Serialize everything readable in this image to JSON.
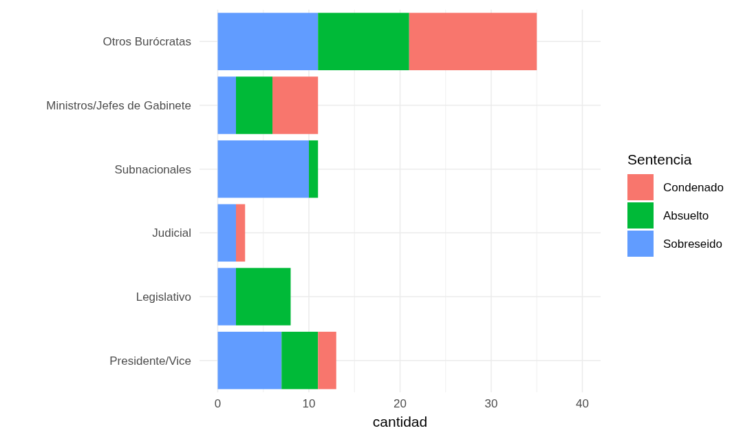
{
  "chart_data": {
    "type": "bar",
    "orientation": "horizontal",
    "stacked": true,
    "xlabel": "cantidad",
    "legend_title": "Sentencia",
    "legend": "right",
    "grid": true,
    "categories": [
      "Otros Burócratas",
      "Ministros/Jefes de Gabinete",
      "Subnacionales",
      "Judicial",
      "Legislativo",
      "Presidente/Vice"
    ],
    "xlim": [
      -2,
      42
    ],
    "xticks": [
      0,
      {
        "value": 5,
        "label": null
      },
      10,
      {
        "value": 15,
        "label": null
      },
      20,
      {
        "value": 25,
        "label": null
      },
      30,
      {
        "value": 35,
        "label": null
      },
      40
    ],
    "series": [
      {
        "name": "Sobreseido",
        "color": "#619cff",
        "values": [
          11,
          2,
          10,
          2,
          2,
          7
        ]
      },
      {
        "name": "Absuelto",
        "color": "#00ba38",
        "values": [
          10,
          4,
          1,
          0,
          6,
          4
        ]
      },
      {
        "name": "Condenado",
        "color": "#f8766d",
        "values": [
          14,
          5,
          0,
          1,
          0,
          2
        ]
      }
    ]
  }
}
